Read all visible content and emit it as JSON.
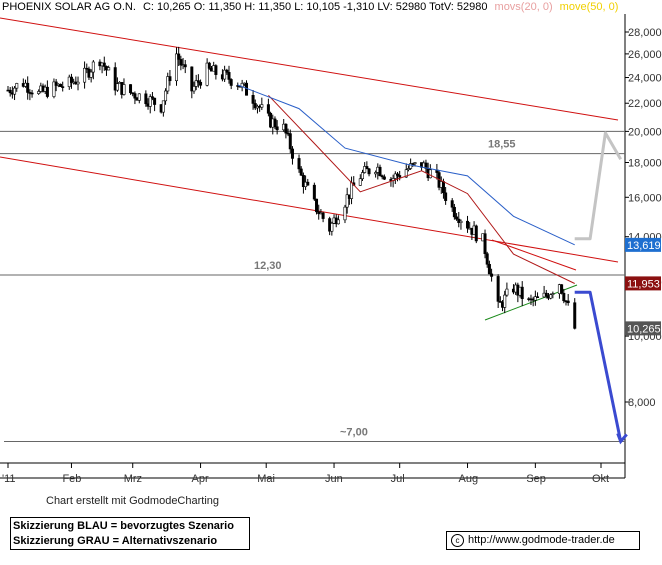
{
  "header": {
    "instrument": "PHOENIX SOLAR AG  O.N.",
    "stats": "C: 10,265 O: 11,350 H: 11,350 L: 10,105 -1,310 LV: 52980 TotV: 52980",
    "ma20_label": "movs(20, 0)",
    "ma50_label": "move(50, 0)",
    "ma20_color": "#e8a0a0",
    "ma50_color": "#f0d000"
  },
  "footer": {
    "credit": "Chart erstellt mit GodmodeCharting",
    "legend_blue": "Skizzierung BLAU = bevorzugtes Szenario",
    "legend_grey": "Skizzierung GRAU = Alternativszenario",
    "url": "http://www.godmode-trader.de"
  },
  "chart_data": {
    "type": "candlestick",
    "y_scale": "log",
    "ylim": [
      6500,
      30000
    ],
    "y_ticks": [
      "8,000",
      "10,000",
      "12,000",
      "14,000",
      "16,000",
      "18,000",
      "20,000",
      "22,000",
      "24,000",
      "26,000",
      "28,000"
    ],
    "x_ticks": [
      "'11",
      "Feb",
      "Mrz",
      "Apr",
      "Mai",
      "Jun",
      "Jul",
      "Aug",
      "Sep",
      "Okt"
    ],
    "price_tags": [
      {
        "label": "13,619",
        "value": 13.619,
        "color": "#1e6fd0"
      },
      {
        "label": "11,953",
        "value": 11.953,
        "color": "#8b1010"
      },
      {
        "label": "10,265",
        "value": 10.265,
        "color": "#555555"
      }
    ],
    "horizontal_levels": [
      {
        "value": 20.0
      },
      {
        "value": 18.55,
        "label": "18,55"
      },
      {
        "value": 12.3,
        "label": "12,30"
      },
      {
        "value": 7.0,
        "label": "~7,00"
      }
    ],
    "series": [
      {
        "name": "price",
        "points": [
          [
            "2011-01-03",
            23.0
          ],
          [
            "2011-01-10",
            23.6
          ],
          [
            "2011-01-17",
            22.7
          ],
          [
            "2011-01-24",
            23.2
          ],
          [
            "2011-01-31",
            23.5
          ],
          [
            "2011-02-07",
            24.2
          ],
          [
            "2011-02-14",
            25.6
          ],
          [
            "2011-02-21",
            23.4
          ],
          [
            "2011-02-28",
            22.8
          ],
          [
            "2011-03-07",
            22.4
          ],
          [
            "2011-03-14",
            21.8
          ],
          [
            "2011-03-21",
            26.0
          ],
          [
            "2011-03-28",
            23.0
          ],
          [
            "2011-04-04",
            24.6
          ],
          [
            "2011-04-11",
            24.2
          ],
          [
            "2011-04-18",
            23.6
          ],
          [
            "2011-04-25",
            22.4
          ],
          [
            "2011-05-02",
            20.8
          ],
          [
            "2011-05-09",
            20.2
          ],
          [
            "2011-05-16",
            17.4
          ],
          [
            "2011-05-23",
            15.6
          ],
          [
            "2011-05-30",
            14.4
          ],
          [
            "2011-06-06",
            15.8
          ],
          [
            "2011-06-13",
            17.2
          ],
          [
            "2011-06-20",
            17.8
          ],
          [
            "2011-06-27",
            17.0
          ],
          [
            "2011-07-04",
            17.6
          ],
          [
            "2011-07-11",
            17.9
          ],
          [
            "2011-07-18",
            17.0
          ],
          [
            "2011-07-25",
            15.4
          ],
          [
            "2011-08-01",
            14.6
          ],
          [
            "2011-08-08",
            13.8
          ],
          [
            "2011-08-15",
            11.0
          ],
          [
            "2011-08-22",
            11.8
          ],
          [
            "2011-08-29",
            11.2
          ],
          [
            "2011-09-05",
            11.4
          ],
          [
            "2011-09-12",
            12.0
          ],
          [
            "2011-09-19",
            10.265
          ]
        ]
      },
      {
        "name": "MA20",
        "points": [
          [
            "2011-05-02",
            22.6
          ],
          [
            "2011-05-23",
            19.2
          ],
          [
            "2011-06-13",
            16.3
          ],
          [
            "2011-07-11",
            17.5
          ],
          [
            "2011-08-01",
            16.2
          ],
          [
            "2011-08-22",
            13.2
          ],
          [
            "2011-09-19",
            11.95
          ]
        ]
      },
      {
        "name": "MA50",
        "points": [
          [
            "2011-04-18",
            23.4
          ],
          [
            "2011-05-16",
            21.6
          ],
          [
            "2011-06-06",
            18.9
          ],
          [
            "2011-07-04",
            17.9
          ],
          [
            "2011-08-01",
            17.2
          ],
          [
            "2011-08-22",
            15.0
          ],
          [
            "2011-09-19",
            13.62
          ]
        ]
      }
    ],
    "scenario_blue": [
      [
        "2011-09-19",
        11.6
      ],
      [
        "2011-09-26",
        11.6
      ],
      [
        "2011-10-10",
        7.0
      ]
    ],
    "scenario_grey": [
      [
        "2011-09-19",
        13.9
      ],
      [
        "2011-09-26",
        13.9
      ],
      [
        "2011-10-03",
        19.9
      ],
      [
        "2011-10-10",
        18.2
      ]
    ]
  }
}
